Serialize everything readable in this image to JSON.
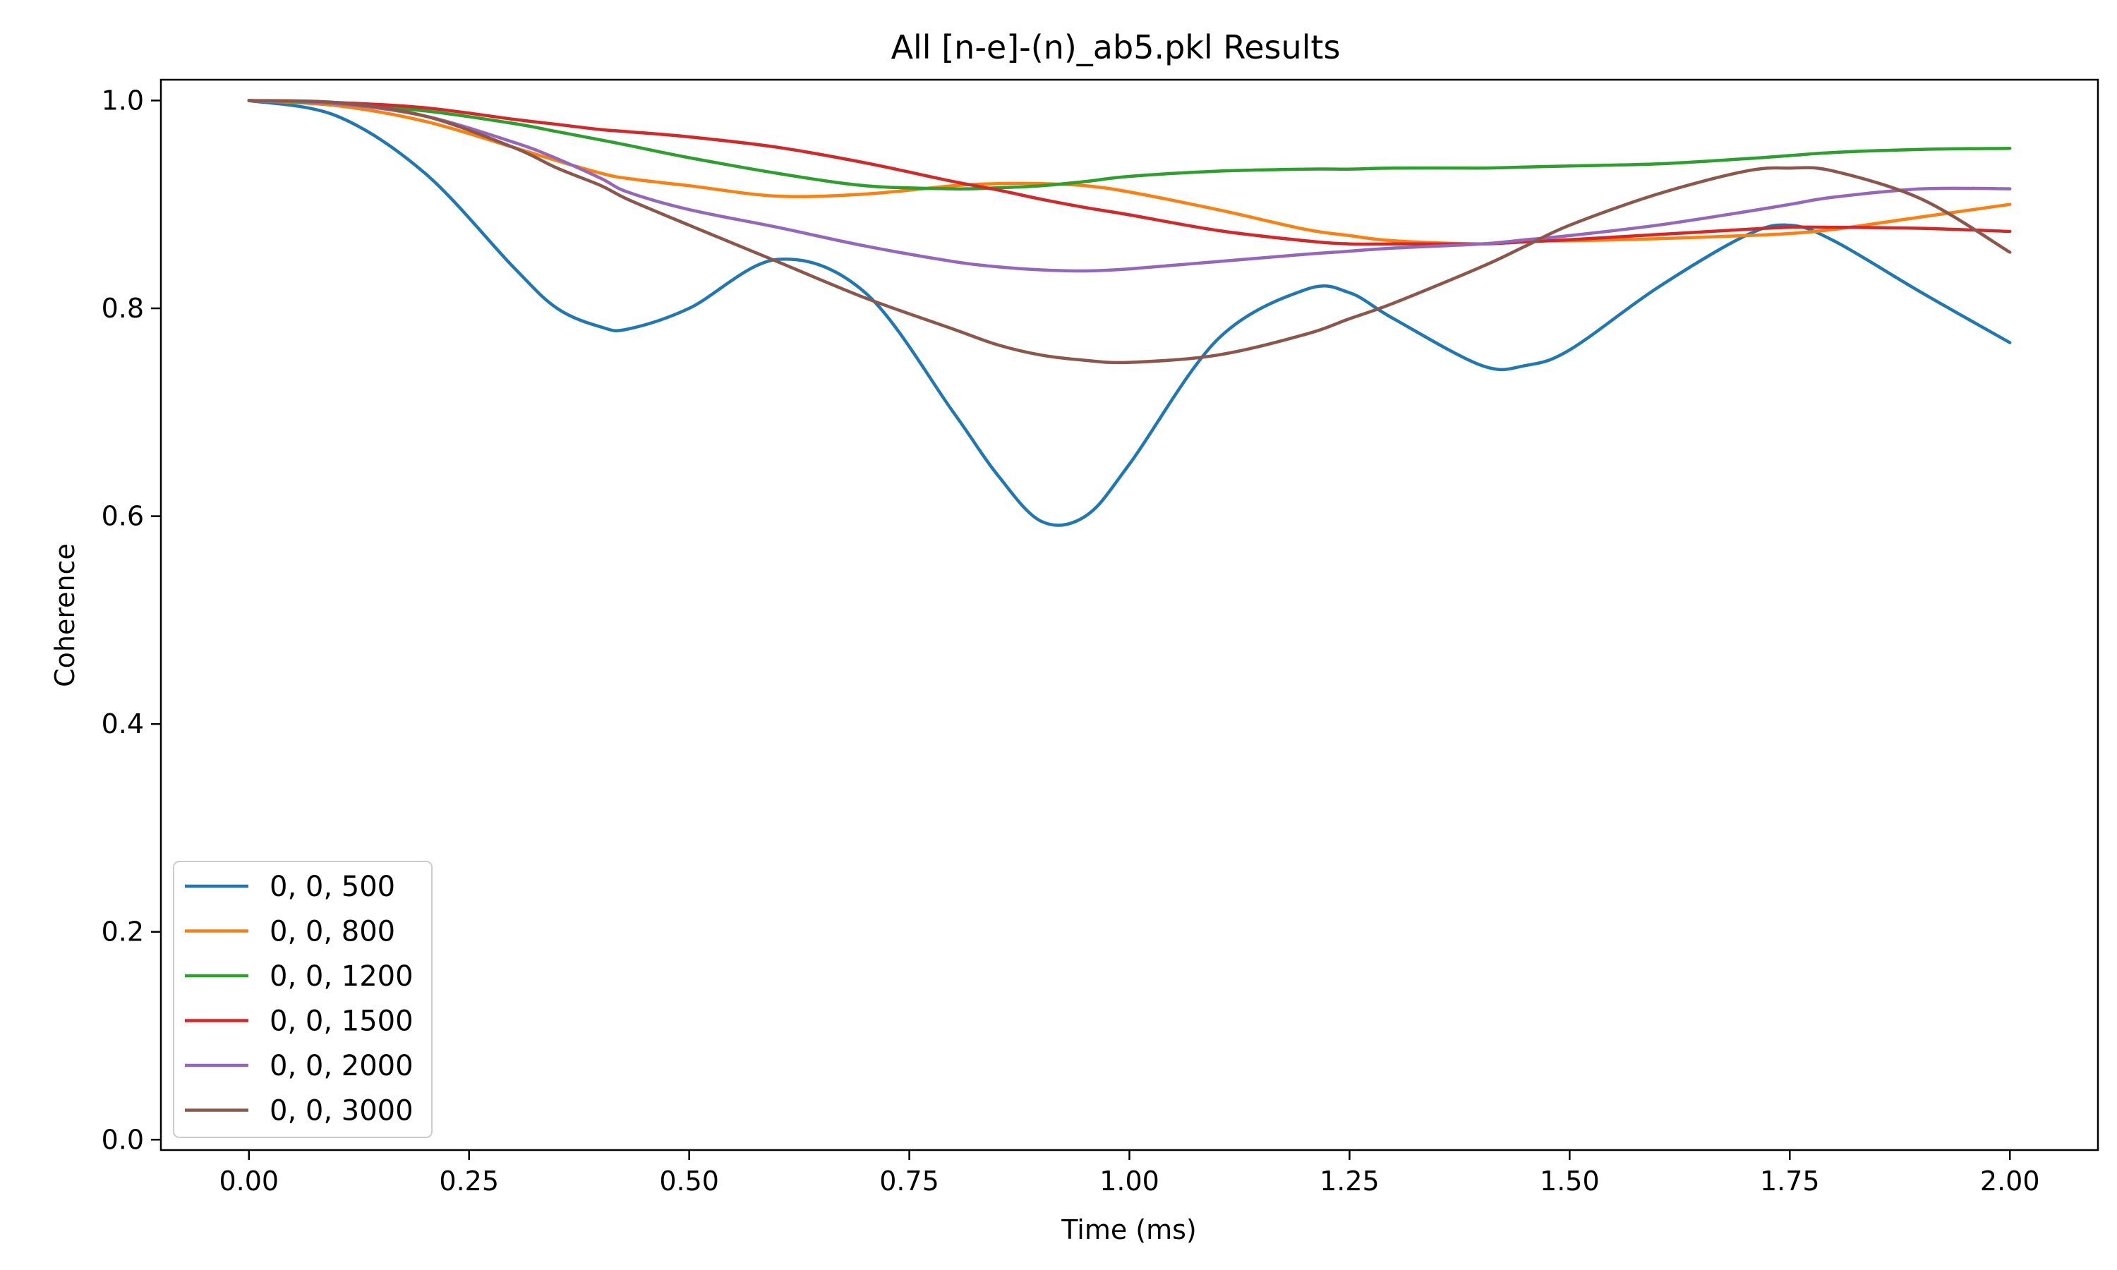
{
  "chart_data": {
    "type": "line",
    "title": "All [n-e]-(n)_ab5.pkl Results",
    "xlabel": "Time (ms)",
    "ylabel": "Coherence",
    "xlim": [
      -0.1,
      2.1
    ],
    "ylim": [
      -0.01,
      1.02
    ],
    "x_ticks": [
      0.0,
      0.25,
      0.5,
      0.75,
      1.0,
      1.25,
      1.5,
      1.75,
      2.0
    ],
    "x_tick_labels": [
      "0.00",
      "0.25",
      "0.50",
      "0.75",
      "1.00",
      "1.25",
      "1.50",
      "1.75",
      "2.00"
    ],
    "y_ticks": [
      0.0,
      0.2,
      0.4,
      0.6,
      0.8,
      1.0
    ],
    "y_tick_labels": [
      "0.0",
      "0.2",
      "0.4",
      "0.6",
      "0.8",
      "1.0"
    ],
    "grid": false,
    "legend_position": "lower-left",
    "x": [
      0.0,
      0.1,
      0.2,
      0.3,
      0.35,
      0.4,
      0.43,
      0.5,
      0.6,
      0.7,
      0.8,
      0.85,
      0.9,
      0.95,
      1.0,
      1.1,
      1.2,
      1.25,
      1.3,
      1.4,
      1.45,
      1.5,
      1.6,
      1.7,
      1.75,
      1.8,
      1.9,
      2.0
    ],
    "series": [
      {
        "name": "0, 0, 500",
        "color": "#1f77b4",
        "values": [
          1.0,
          0.985,
          0.93,
          0.84,
          0.8,
          0.782,
          0.78,
          0.8,
          0.847,
          0.815,
          0.7,
          0.64,
          0.595,
          0.6,
          0.65,
          0.77,
          0.818,
          0.815,
          0.79,
          0.745,
          0.745,
          0.76,
          0.82,
          0.87,
          0.88,
          0.865,
          0.815,
          0.767
        ]
      },
      {
        "name": "0, 0, 800",
        "color": "#ff7f0e",
        "values": [
          1.0,
          0.995,
          0.98,
          0.955,
          0.942,
          0.93,
          0.925,
          0.918,
          0.908,
          0.91,
          0.918,
          0.92,
          0.92,
          0.918,
          0.912,
          0.895,
          0.876,
          0.87,
          0.865,
          0.862,
          0.865,
          0.865,
          0.867,
          0.87,
          0.872,
          0.876,
          0.888,
          0.9
        ]
      },
      {
        "name": "0, 0, 1200",
        "color": "#2ca02c",
        "values": [
          1.0,
          0.997,
          0.99,
          0.978,
          0.97,
          0.962,
          0.957,
          0.945,
          0.93,
          0.918,
          0.915,
          0.916,
          0.918,
          0.922,
          0.927,
          0.932,
          0.934,
          0.934,
          0.935,
          0.935,
          0.936,
          0.937,
          0.939,
          0.944,
          0.947,
          0.95,
          0.953,
          0.954
        ]
      },
      {
        "name": "0, 0, 1500",
        "color": "#d62728",
        "values": [
          1.0,
          0.998,
          0.993,
          0.982,
          0.977,
          0.972,
          0.97,
          0.965,
          0.955,
          0.94,
          0.922,
          0.914,
          0.905,
          0.897,
          0.89,
          0.875,
          0.865,
          0.862,
          0.862,
          0.862,
          0.864,
          0.866,
          0.871,
          0.876,
          0.878,
          0.878,
          0.877,
          0.874
        ]
      },
      {
        "name": "0, 0, 2000",
        "color": "#9467bd",
        "values": [
          1.0,
          0.997,
          0.985,
          0.96,
          0.944,
          0.925,
          0.912,
          0.895,
          0.878,
          0.86,
          0.845,
          0.84,
          0.837,
          0.836,
          0.838,
          0.845,
          0.852,
          0.855,
          0.858,
          0.862,
          0.866,
          0.87,
          0.88,
          0.893,
          0.9,
          0.907,
          0.915,
          0.915
        ]
      },
      {
        "name": "0, 0, 3000",
        "color": "#8c564b",
        "values": [
          1.0,
          0.998,
          0.985,
          0.955,
          0.935,
          0.918,
          0.905,
          0.88,
          0.845,
          0.81,
          0.78,
          0.765,
          0.755,
          0.75,
          0.748,
          0.755,
          0.775,
          0.79,
          0.805,
          0.84,
          0.86,
          0.88,
          0.91,
          0.932,
          0.935,
          0.932,
          0.905,
          0.854
        ]
      }
    ]
  }
}
